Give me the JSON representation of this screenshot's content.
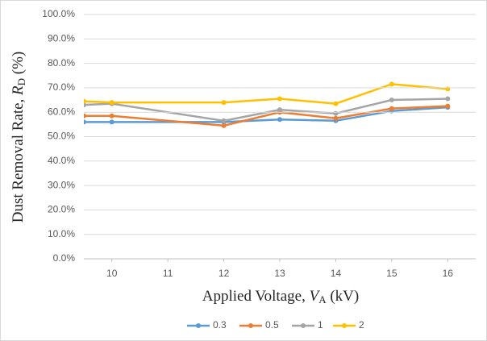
{
  "chart_data": {
    "type": "line",
    "xlabel": [
      "Applied  Voltage, ",
      "V",
      "A",
      " (kV)"
    ],
    "ylabel": [
      "Dust Removal Rate, ",
      "R",
      "D",
      " (%)"
    ],
    "x": [
      9.5,
      10,
      12,
      13,
      14,
      15,
      16
    ],
    "xlim": [
      9.5,
      16.5
    ],
    "xticks": [
      10,
      11,
      12,
      13,
      14,
      15,
      16
    ],
    "ylim": [
      0,
      100
    ],
    "yticks": [
      {
        "value": 0,
        "label": "0.0%"
      },
      {
        "value": 10,
        "label": "10.0%"
      },
      {
        "value": 20,
        "label": "20.0%"
      },
      {
        "value": 30,
        "label": "30.0%"
      },
      {
        "value": 40,
        "label": "40.0%"
      },
      {
        "value": 50,
        "label": "50.0%"
      },
      {
        "value": 60,
        "label": "60.0%"
      },
      {
        "value": 70,
        "label": "70.0%"
      },
      {
        "value": 80,
        "label": "80.0%"
      },
      {
        "value": 90,
        "label": "90.0%"
      },
      {
        "value": 100,
        "label": "100.0%"
      }
    ],
    "grid": true,
    "legend": "bottom",
    "series": [
      {
        "name": "0.3",
        "color": "#5b9bd5",
        "values": [
          56,
          56,
          56,
          57,
          56.5,
          60.5,
          62
        ]
      },
      {
        "name": "0.5",
        "color": "#ed7d31",
        "values": [
          58.5,
          58.5,
          54.5,
          60,
          57.5,
          61.5,
          62.5
        ]
      },
      {
        "name": "1",
        "color": "#a5a5a5",
        "values": [
          63,
          63.5,
          56.5,
          61,
          59.5,
          65,
          65.5
        ]
      },
      {
        "name": "2",
        "color": "#ffc000",
        "values": [
          64.5,
          64,
          64,
          65.5,
          63.5,
          71.5,
          69.5
        ]
      }
    ]
  }
}
